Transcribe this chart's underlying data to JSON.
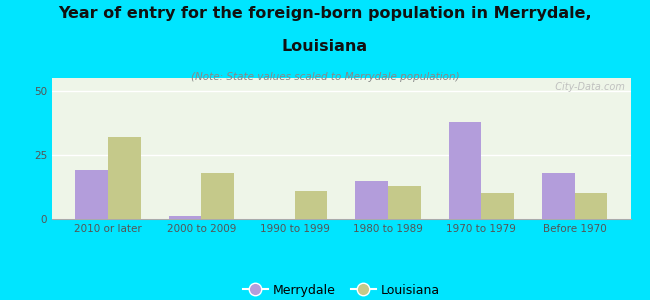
{
  "categories": [
    "2010 or later",
    "2000 to 2009",
    "1990 to 1999",
    "1980 to 1989",
    "1970 to 1979",
    "Before 1970"
  ],
  "merrydale_values": [
    19,
    1,
    0,
    15,
    38,
    18
  ],
  "louisiana_values": [
    32,
    18,
    11,
    13,
    10,
    10
  ],
  "merrydale_color": "#b39ddb",
  "louisiana_color": "#c5c98a",
  "title_line1": "Year of entry for the foreign-born population in Merrydale,",
  "title_line2": "Louisiana",
  "subtitle": "(Note: State values scaled to Merrydale population)",
  "ylim": [
    0,
    55
  ],
  "yticks": [
    0,
    25,
    50
  ],
  "background_color": "#00e5ff",
  "plot_bg_color": "#eef5e8",
  "watermark": "  City-Data.com",
  "legend_labels": [
    "Merrydale",
    "Louisiana"
  ],
  "bar_width": 0.35,
  "title_fontsize": 11.5,
  "subtitle_fontsize": 7.5,
  "tick_fontsize": 7.5,
  "legend_fontsize": 9
}
